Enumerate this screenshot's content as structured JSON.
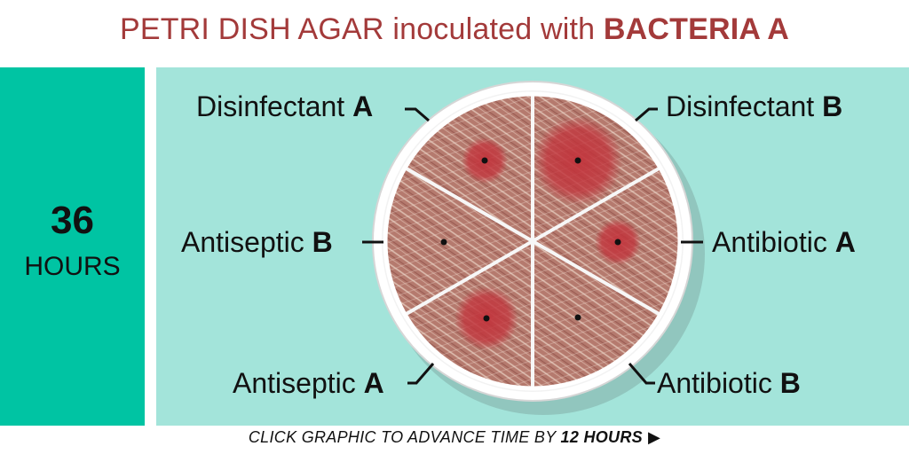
{
  "title": {
    "prefix": "PETRI DISH AGAR inoculated with ",
    "emphasis": "BACTERIA A",
    "color": "#a33a3a"
  },
  "time_panel": {
    "value": "36",
    "unit": "HOURS",
    "color": "#00c4a3"
  },
  "dish": {
    "sections": [
      {
        "id": "disinfectant-a",
        "name": "Disinfectant ",
        "letter": "A",
        "zone": "small"
      },
      {
        "id": "disinfectant-b",
        "name": "Disinfectant ",
        "letter": "B",
        "zone": "large"
      },
      {
        "id": "antibiotic-a",
        "name": "Antibiotic ",
        "letter": "A",
        "zone": "small"
      },
      {
        "id": "antibiotic-b",
        "name": "Antibiotic ",
        "letter": "B",
        "zone": "none"
      },
      {
        "id": "antiseptic-a",
        "name": "Antiseptic ",
        "letter": "A",
        "zone": "medium"
      },
      {
        "id": "antiseptic-b",
        "name": "Antiseptic ",
        "letter": "B",
        "zone": "none"
      }
    ],
    "colors": {
      "agar": "#b57a6e",
      "zone": "#c2343c",
      "background": "#a3e4da"
    }
  },
  "footer": {
    "prefix": "CLICK GRAPHIC TO ADVANCE TIME BY ",
    "emphasis": "12 HOURS",
    "icon": "play-triangle-icon"
  }
}
